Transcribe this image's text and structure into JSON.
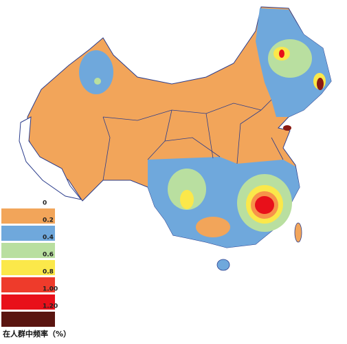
{
  "legend": {
    "title": "在人群中频率（%）",
    "items": [
      {
        "label": "0",
        "color": "#f2a55a"
      },
      {
        "label": "0.2",
        "color": "#6fa8dc"
      },
      {
        "label": "0.4",
        "color": "#b9dfa0"
      },
      {
        "label": "0.6",
        "color": "#fbe84a"
      },
      {
        "label": "0.8",
        "color": "#ee3b2b"
      },
      {
        "label": "1.00",
        "color": "#e8101a"
      },
      {
        "label": "1.20",
        "color": "#5a1510"
      }
    ]
  }
}
